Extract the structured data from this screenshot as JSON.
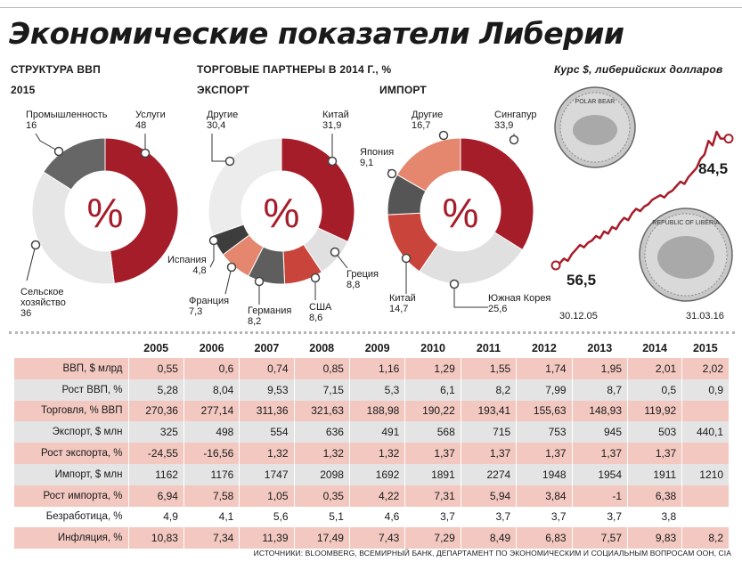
{
  "title": "Экономические показатели Либерии",
  "gdp": {
    "header": "СТРУКТУРА ВВП",
    "year": "2015",
    "center_symbol": "%",
    "segments": [
      {
        "label": "Услуги",
        "value": 48,
        "color": "#a61d2a"
      },
      {
        "label": "Сельское хозяйство",
        "value": 36,
        "color": "#e6e6e6"
      },
      {
        "label": "Промышленность",
        "value": 16,
        "color": "#666666"
      }
    ]
  },
  "trade_header": "ТОРГОВЫЕ ПАРТНЕРЫ В 2014 Г., %",
  "export": {
    "header": "ЭКСПОРТ",
    "center_symbol": "%",
    "segments": [
      {
        "label": "Китай",
        "value": 31.9,
        "color": "#a61d2a"
      },
      {
        "label": "Греция",
        "value": 8.8,
        "color": "#e0e0e0"
      },
      {
        "label": "США",
        "value": 8.6,
        "color": "#c9443a"
      },
      {
        "label": "Германия",
        "value": 8.2,
        "color": "#5e5e5e"
      },
      {
        "label": "Франция",
        "value": 7.3,
        "color": "#e5876f"
      },
      {
        "label": "Испания",
        "value": 4.8,
        "color": "#3d3d3d"
      },
      {
        "label": "Другие",
        "value": 30.4,
        "color": "#ececec"
      }
    ],
    "labels": {
      "china": [
        "Китай",
        "31,9"
      ],
      "greece": [
        "Греция",
        "8,8"
      ],
      "usa": [
        "США",
        "8,6"
      ],
      "germany": [
        "Германия",
        "8,2"
      ],
      "france": [
        "Франция",
        "7,3"
      ],
      "spain": [
        "Испания",
        "4,8"
      ],
      "other": [
        "Другие",
        "30,4"
      ]
    }
  },
  "import": {
    "header": "ИМПОРТ",
    "center_symbol": "%",
    "segments": [
      {
        "label": "Сингапур",
        "value": 33.9,
        "color": "#a61d2a"
      },
      {
        "label": "Южная Корея",
        "value": 25.6,
        "color": "#e0e0e0"
      },
      {
        "label": "Китай",
        "value": 14.7,
        "color": "#c9443a"
      },
      {
        "label": "Япония",
        "value": 9.1,
        "color": "#555555"
      },
      {
        "label": "Другие",
        "value": 16.7,
        "color": "#e5876f"
      }
    ],
    "labels": {
      "singapore": [
        "Сингапур",
        "33,9"
      ],
      "korea": [
        "Южная Корея",
        "25,6"
      ],
      "china": [
        "Китай",
        "14,7"
      ],
      "japan": [
        "Япония",
        "9,1"
      ],
      "other": [
        "Другие",
        "16,7"
      ]
    }
  },
  "gdp_labels": {
    "services": [
      "Услуги",
      "48"
    ],
    "agriculture": [
      "Сельское",
      "хозяйство",
      "36"
    ],
    "industry": [
      "Промышленность",
      "16"
    ]
  },
  "rate": {
    "header": "Курс $, либерийских долларов",
    "start_value": "56,5",
    "end_value": "84,5",
    "start_date": "30.12.05",
    "end_date": "31.03.16",
    "coin_top_text": "POLAR BEAR",
    "coin_bottom_text": "REPUBLIC OF LIBERIA",
    "series": [
      56.5,
      57,
      58,
      57.5,
      59,
      60,
      61,
      60.5,
      61.5,
      62,
      63,
      62.5,
      64,
      63.5,
      65,
      64.5,
      66,
      67,
      66.5,
      68,
      69,
      68.5,
      69.5,
      70,
      71,
      71.5,
      72,
      71.5,
      72.5,
      73,
      74,
      75,
      74.5,
      76,
      77,
      78,
      80,
      81,
      84,
      83,
      86,
      84.5,
      84.5,
      84.5
    ]
  },
  "table": {
    "years": [
      "2005",
      "2006",
      "2007",
      "2008",
      "2009",
      "2010",
      "2011",
      "2012",
      "2013",
      "2014",
      "2015"
    ],
    "rows": [
      {
        "label": "ВВП, $ млрд",
        "values": [
          "0,55",
          "0,6",
          "0,74",
          "0,85",
          "1,16",
          "1,29",
          "1,55",
          "1,74",
          "1,95",
          "2,01",
          "2,02"
        ]
      },
      {
        "label": "Рост ВВП, %",
        "values": [
          "5,28",
          "8,04",
          "9,53",
          "7,15",
          "5,3",
          "6,1",
          "8,2",
          "7,99",
          "8,7",
          "0,5",
          "0,9"
        ]
      },
      {
        "label": "Торговля, % ВВП",
        "values": [
          "270,36",
          "277,14",
          "311,36",
          "321,63",
          "188,98",
          "190,22",
          "193,41",
          "155,63",
          "148,93",
          "119,92",
          ""
        ]
      },
      {
        "label": "Экспорт, $ млн",
        "values": [
          "325",
          "498",
          "554",
          "636",
          "491",
          "568",
          "715",
          "753",
          "945",
          "503",
          "440,1"
        ]
      },
      {
        "label": "Рост экспорта, %",
        "values": [
          "-24,55",
          "-16,56",
          "1,32",
          "1,32",
          "1,32",
          "1,37",
          "1,37",
          "1,37",
          "1,37",
          "1,37",
          ""
        ]
      },
      {
        "label": "Импорт, $ млн",
        "values": [
          "1162",
          "1176",
          "1747",
          "2098",
          "1692",
          "1891",
          "2274",
          "1948",
          "1954",
          "1911",
          "1210"
        ]
      },
      {
        "label": "Рост импорта, %",
        "values": [
          "6,94",
          "7,58",
          "1,05",
          "0,35",
          "4,22",
          "7,31",
          "5,94",
          "3,84",
          "-1",
          "6,38",
          ""
        ]
      },
      {
        "label": "Безработица, %",
        "values": [
          "4,9",
          "4,1",
          "5,6",
          "5,1",
          "4,6",
          "3,7",
          "3,7",
          "3,7",
          "3,7",
          "3,8",
          ""
        ]
      },
      {
        "label": "Инфляция, %",
        "values": [
          "10,83",
          "7,34",
          "11,39",
          "17,49",
          "7,43",
          "7,29",
          "8,49",
          "6,83",
          "7,57",
          "9,83",
          "8,2"
        ]
      }
    ]
  },
  "source": "ИСТОЧНИКИ: BLOOMBERG, ВСЕМИРНЫЙ БАНК, ДЕПАРТАМЕНТ ПО ЭКОНОМИЧЕСКИМ И СОЦИАЛЬНЫМ ВОПРОСАМ ООН, CIA",
  "chart_data": [
    {
      "type": "pie",
      "title": "СТРУКТУРА ВВП 2015",
      "categories": [
        "Услуги",
        "Сельское хозяйство",
        "Промышленность"
      ],
      "values": [
        48,
        36,
        16
      ]
    },
    {
      "type": "pie",
      "title": "ЭКСПОРТ",
      "categories": [
        "Китай",
        "Греция",
        "США",
        "Германия",
        "Франция",
        "Испания",
        "Другие"
      ],
      "values": [
        31.9,
        8.8,
        8.6,
        8.2,
        7.3,
        4.8,
        30.4
      ]
    },
    {
      "type": "pie",
      "title": "ИМПОРТ",
      "categories": [
        "Сингапур",
        "Южная Корея",
        "Китай",
        "Япония",
        "Другие"
      ],
      "values": [
        33.9,
        25.6,
        14.7,
        9.1,
        16.7
      ]
    },
    {
      "type": "line",
      "title": "Курс $, либерийских долларов",
      "x": [
        "30.12.05",
        "31.03.16"
      ],
      "y_start": 56.5,
      "y_end": 84.5
    }
  ]
}
